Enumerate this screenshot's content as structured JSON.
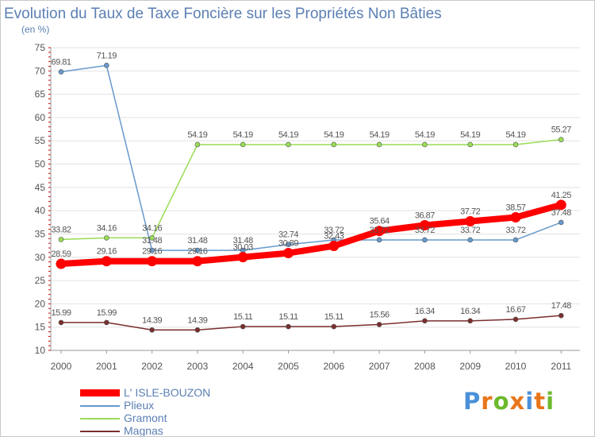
{
  "title": "Evolution du Taux de Taxe Foncière sur les Propriétés Non Bâties",
  "unit": "(en %)",
  "brand": "Proxiti",
  "chart_data": {
    "type": "line",
    "title": "Evolution du Taux de Taxe Foncière sur les Propriétés Non Bâties",
    "ylabel": "(en %)",
    "xlabel": "",
    "ylim": [
      10,
      75
    ],
    "yticks": [
      "10",
      "15",
      "20",
      "25",
      "30",
      "35",
      "40",
      "45",
      "50",
      "55",
      "60",
      "65",
      "70",
      "75"
    ],
    "categories": [
      "2000",
      "2001",
      "2002",
      "2003",
      "2004",
      "2005",
      "2006",
      "2007",
      "2008",
      "2009",
      "2010",
      "2011"
    ],
    "grid": "horizontal",
    "legend_position": "bottom-left",
    "series": [
      {
        "name": "L' ISLE-BOUZON",
        "color": "#ff0000",
        "values": [
          28.59,
          29.16,
          29.16,
          29.16,
          30.03,
          30.89,
          32.43,
          35.64,
          36.87,
          37.72,
          38.57,
          41.25
        ],
        "labels": [
          "28.59",
          "29.16",
          "29.16",
          "29.16",
          "30.03",
          "30.89",
          "32.43",
          "35.64",
          "36.87",
          "37.72",
          "38.57",
          "41.25"
        ]
      },
      {
        "name": "Plieux",
        "color": "#6699cc",
        "values": [
          69.81,
          71.19,
          31.48,
          31.48,
          31.48,
          32.74,
          33.72,
          33.72,
          33.72,
          33.72,
          33.72,
          37.48
        ],
        "labels": [
          "69.81",
          "71.19",
          "31.48",
          "31.48",
          "31.48",
          "32.74",
          "33.72",
          "33.72",
          "33.72",
          "33.72",
          "33.72",
          "37.48"
        ]
      },
      {
        "name": "Gramont",
        "color": "#99dd55",
        "values": [
          33.82,
          34.16,
          34.16,
          54.19,
          54.19,
          54.19,
          54.19,
          54.19,
          54.19,
          54.19,
          54.19,
          55.27
        ],
        "labels": [
          "33.82",
          "34.16",
          "34.16",
          "54.19",
          "54.19",
          "54.19",
          "54.19",
          "54.19",
          "54.19",
          "54.19",
          "54.19",
          "55.27"
        ]
      },
      {
        "name": "Magnas",
        "color": "#7a2e2e",
        "values": [
          15.99,
          15.99,
          14.39,
          14.39,
          15.11,
          15.11,
          15.11,
          15.56,
          16.34,
          16.34,
          16.67,
          17.48
        ],
        "labels": [
          "15.99",
          "15.99",
          "14.39",
          "14.39",
          "15.11",
          "15.11",
          "15.11",
          "15.56",
          "16.34",
          "16.34",
          "16.67",
          "17.48"
        ]
      }
    ]
  }
}
